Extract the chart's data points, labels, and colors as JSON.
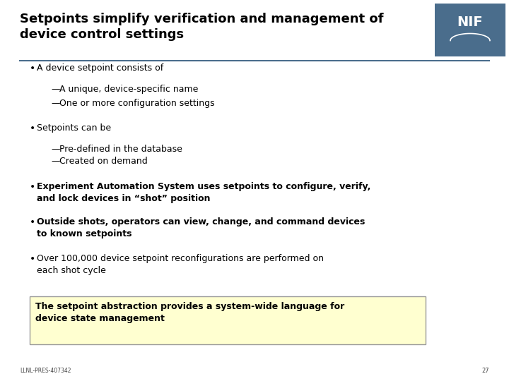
{
  "title_line1": "Setpoints simplify verification and management of",
  "title_line2": "device control settings",
  "title_fontsize": 13,
  "title_color": "#000000",
  "bg_color": "#ffffff",
  "header_box_color": "#4a6d8c",
  "nif_text": "NIF",
  "bullet_points": [
    {
      "text": "A device setpoint consists of",
      "level": 0,
      "bold": false
    },
    {
      "text": "A unique, device-specific name",
      "level": 1,
      "bold": false
    },
    {
      "text": "One or more configuration settings",
      "level": 1,
      "bold": false
    },
    {
      "text": "Setpoints can be",
      "level": 0,
      "bold": false
    },
    {
      "text": "Pre-defined in the database",
      "level": 1,
      "bold": false
    },
    {
      "text": "Created on demand",
      "level": 1,
      "bold": false
    },
    {
      "text": "Experiment Automation System uses setpoints to configure, verify,\nand lock devices in “shot” position",
      "level": 0,
      "bold": true
    },
    {
      "text": "Outside shots, operators can view, change, and command devices\nto known setpoints",
      "level": 0,
      "bold": true
    },
    {
      "text": "Over 100,000 device setpoint reconfigurations are performed on\neach shot cycle",
      "level": 0,
      "bold": false
    }
  ],
  "callout_text": "The setpoint abstraction provides a system-wide language for\ndevice state management",
  "callout_bg": "#ffffd0",
  "callout_border": "#999999",
  "footer_text": "LLNL-PRES-407342",
  "page_number": "27",
  "separator_color": "#4a6d8c",
  "body_fontsize": 9,
  "nif_fontsize": 14
}
